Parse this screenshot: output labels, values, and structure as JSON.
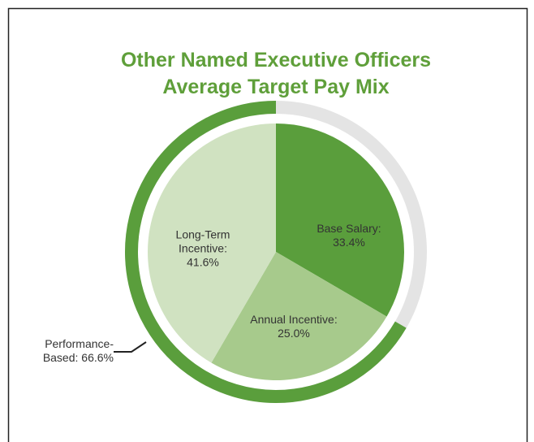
{
  "chart_data": {
    "type": "pie",
    "title": [
      "Other Named Executive Officers",
      "Average Target Pay Mix"
    ],
    "categories": [
      "Base Salary:",
      "Annual Incentive:",
      "Long-Term Incentive:"
    ],
    "values": [
      33.4,
      25.0,
      41.6
    ],
    "value_labels": [
      "33.4%",
      "25.0%",
      "41.6%"
    ],
    "colors": [
      "#5a9e3c",
      "#a7ca8c",
      "#d0e2c1"
    ],
    "ring": {
      "name": "Performance-Based:",
      "value": 66.6,
      "value_label": "66.6%",
      "color": "#5a9e3c",
      "rest_color": "#e4e4e4"
    }
  }
}
